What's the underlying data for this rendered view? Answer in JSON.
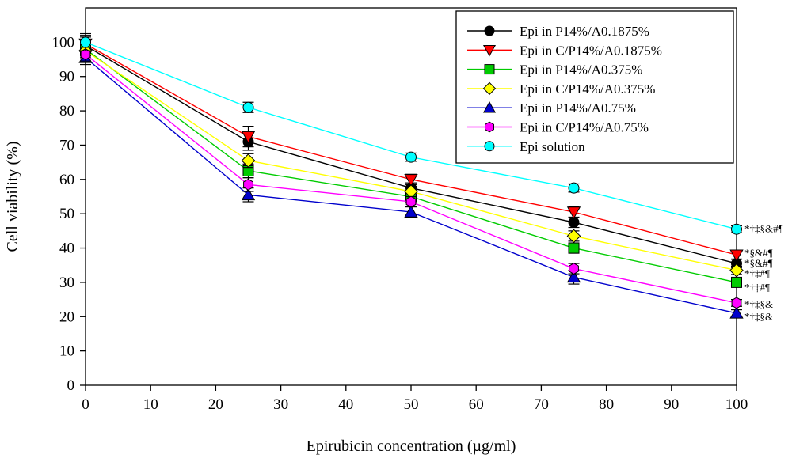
{
  "chart_data": {
    "type": "line",
    "title": "",
    "xlabel": "Epirubicin concentration (µg/ml)",
    "ylabel": "Cell viability (%)",
    "xlim": [
      0,
      100
    ],
    "ylim": [
      0,
      110
    ],
    "xticks": [
      0,
      10,
      20,
      30,
      40,
      50,
      60,
      70,
      80,
      90,
      100
    ],
    "yticks": [
      0,
      10,
      20,
      30,
      40,
      50,
      60,
      70,
      80,
      90,
      100
    ],
    "x": [
      0,
      25,
      50,
      75,
      100
    ],
    "grid": false,
    "legend_position": "top-right",
    "series": [
      {
        "name": "Epi in P14%/A0.1875%",
        "color": "#000000",
        "marker": "circle",
        "values": [
          99,
          71,
          57.5,
          47.5,
          35.5
        ],
        "errors": [
          2.5,
          2.5,
          1.5,
          1.5,
          1.2
        ]
      },
      {
        "name": "Epi in C/P14%/A0.1875%",
        "color": "#ff0000",
        "marker": "triangle-down",
        "values": [
          99.5,
          72.5,
          60,
          50.5,
          38
        ],
        "errors": [
          2.5,
          3,
          1.5,
          1.5,
          1.2
        ]
      },
      {
        "name": "Epi in P14%/A0.375%",
        "color": "#00cc00",
        "marker": "square",
        "values": [
          98,
          62.5,
          55,
          40,
          30
        ],
        "errors": [
          2,
          2,
          1.5,
          1.5,
          1.2
        ]
      },
      {
        "name": "Epi in C/P14%/A0.375%",
        "color": "#ffff00",
        "marker": "diamond",
        "values": [
          97.5,
          65.5,
          56.5,
          43.5,
          33.5
        ],
        "errors": [
          2,
          2,
          1.5,
          1.5,
          1.2
        ]
      },
      {
        "name": "Epi in P14%/A0.75%",
        "color": "#0000cc",
        "marker": "triangle-up",
        "values": [
          95.5,
          55.5,
          50.5,
          31.5,
          21
        ],
        "errors": [
          2,
          2,
          1.5,
          2,
          1
        ]
      },
      {
        "name": "Epi in C/P14%/A0.75%",
        "color": "#ff00ff",
        "marker": "hexagon",
        "values": [
          96.5,
          58.5,
          53.5,
          34,
          24
        ],
        "errors": [
          2,
          2,
          1.5,
          1.5,
          1
        ]
      },
      {
        "name": "Epi solution",
        "color": "#00ffff",
        "marker": "circle",
        "values": [
          100,
          81,
          66.5,
          57.5,
          45.5
        ],
        "errors": [
          2.5,
          1.5,
          1.2,
          1.2,
          1
        ]
      }
    ],
    "annotations": [
      {
        "text": "*†‡§&#¶",
        "x": 100,
        "y": 45.5
      },
      {
        "text": "*§&#¶",
        "x": 100,
        "y": 38.5
      },
      {
        "text": "*§&#¶",
        "x": 100,
        "y": 35.5
      },
      {
        "text": "*†‡#¶",
        "x": 100,
        "y": 32.5
      },
      {
        "text": "*†‡#¶",
        "x": 100,
        "y": 28.5
      },
      {
        "text": "*†‡§&",
        "x": 100,
        "y": 23.5
      },
      {
        "text": "*†‡§&",
        "x": 100,
        "y": 20
      }
    ]
  }
}
